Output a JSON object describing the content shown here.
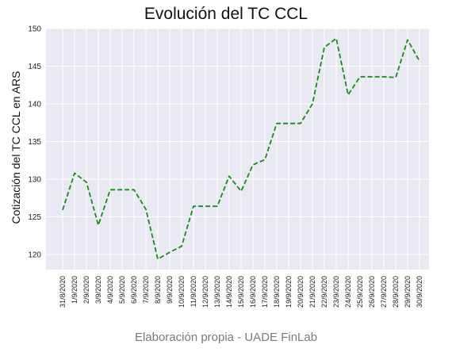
{
  "chart_data": {
    "type": "line",
    "title": "Evolución del TC CCL",
    "xlabel": "",
    "ylabel": "Cotización del TC CCL en ARS",
    "categories": [
      "31/8/2020",
      "1/9/2020",
      "2/9/2020",
      "3/9/2020",
      "4/9/2020",
      "5/9/2020",
      "6/9/2020",
      "7/9/2020",
      "8/9/2020",
      "9/9/2020",
      "10/9/2020",
      "11/9/2020",
      "12/9/2020",
      "13/9/2020",
      "14/9/2020",
      "15/9/2020",
      "16/9/2020",
      "17/9/2020",
      "18/9/2020",
      "19/9/2020",
      "20/9/2020",
      "21/9/2020",
      "22/9/2020",
      "23/9/2020",
      "24/9/2020",
      "25/9/2020",
      "26/9/2020",
      "27/9/2020",
      "28/9/2020",
      "29/9/2020",
      "30/9/2020"
    ],
    "series": [
      {
        "color": "#1a8a1a",
        "line_style": "dashed",
        "values": [
          125.9,
          130.8,
          129.6,
          123.9,
          128.6,
          128.6,
          128.6,
          126.0,
          119.4,
          120.3,
          121.1,
          126.4,
          126.4,
          126.4,
          130.4,
          128.4,
          131.9,
          132.6,
          137.4,
          137.4,
          137.4,
          140.0,
          147.5,
          148.7,
          141.2,
          143.6,
          143.6,
          143.6,
          143.5,
          148.5,
          145.7
        ]
      }
    ],
    "ylim": [
      118,
      150
    ],
    "yticks": [
      120,
      125,
      130,
      135,
      140,
      145,
      150
    ],
    "grid": true,
    "background": "#e9e9f3"
  },
  "footer": {
    "credit": "Elaboración propia - UADE FinLab"
  }
}
